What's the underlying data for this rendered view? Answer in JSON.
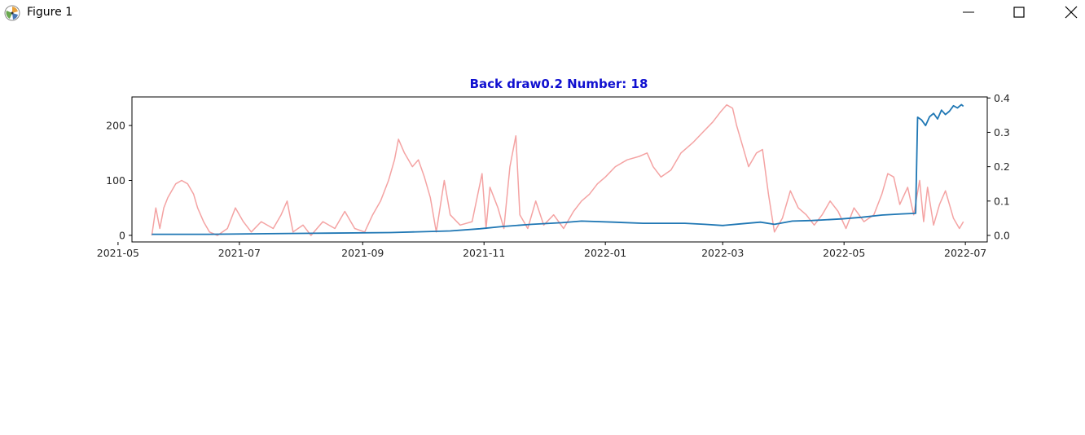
{
  "window": {
    "title": "Figure 1",
    "icons": {
      "app": "matplotlib-figure-icon",
      "minimize": "minimize-icon",
      "maximize": "maximize-icon",
      "close": "close-icon"
    }
  },
  "chart_data": {
    "type": "line",
    "title": "Back draw0.2 Number: 18",
    "title_color": "#1010d0",
    "xlabel": "",
    "ylabel": "",
    "grid": false,
    "legend": "none",
    "x_axis": {
      "type": "date",
      "range": [
        "2021-05-08",
        "2022-07-12"
      ],
      "ticks": [
        "2021-05",
        "2021-07",
        "2021-09",
        "2021-11",
        "2022-01",
        "2022-03",
        "2022-05",
        "2022-07"
      ]
    },
    "y_left": {
      "range": [
        -12,
        252
      ],
      "ticks": [
        0,
        100,
        200
      ],
      "tick_labels": [
        "0",
        "100",
        "200"
      ]
    },
    "y_right": {
      "range": [
        -0.019,
        0.403
      ],
      "ticks": [
        0.0,
        0.1,
        0.2,
        0.3,
        0.4
      ],
      "tick_labels": [
        "0.0",
        "0.1",
        "0.2",
        "0.3",
        "0.4"
      ]
    },
    "series": [
      {
        "axis": "right",
        "color": "#f4a3a3",
        "width": 1.5,
        "points": [
          [
            "2021-05-18",
            0.0
          ],
          [
            "2021-05-20",
            0.08
          ],
          [
            "2021-05-22",
            0.02
          ],
          [
            "2021-05-24",
            0.08
          ],
          [
            "2021-05-26",
            0.11
          ],
          [
            "2021-05-28",
            0.13
          ],
          [
            "2021-05-30",
            0.15
          ],
          [
            "2021-06-02",
            0.16
          ],
          [
            "2021-06-05",
            0.15
          ],
          [
            "2021-06-08",
            0.12
          ],
          [
            "2021-06-10",
            0.08
          ],
          [
            "2021-06-13",
            0.04
          ],
          [
            "2021-06-16",
            0.01
          ],
          [
            "2021-06-20",
            0.0
          ],
          [
            "2021-06-25",
            0.02
          ],
          [
            "2021-06-29",
            0.08
          ],
          [
            "2021-07-03",
            0.04
          ],
          [
            "2021-07-07",
            0.01
          ],
          [
            "2021-07-12",
            0.04
          ],
          [
            "2021-07-18",
            0.02
          ],
          [
            "2021-07-22",
            0.06
          ],
          [
            "2021-07-25",
            0.1
          ],
          [
            "2021-07-28",
            0.01
          ],
          [
            "2021-08-02",
            0.03
          ],
          [
            "2021-08-06",
            0.0
          ],
          [
            "2021-08-12",
            0.04
          ],
          [
            "2021-08-18",
            0.02
          ],
          [
            "2021-08-23",
            0.07
          ],
          [
            "2021-08-28",
            0.02
          ],
          [
            "2021-09-02",
            0.01
          ],
          [
            "2021-09-06",
            0.06
          ],
          [
            "2021-09-10",
            0.1
          ],
          [
            "2021-09-14",
            0.16
          ],
          [
            "2021-09-17",
            0.22
          ],
          [
            "2021-09-19",
            0.28
          ],
          [
            "2021-09-22",
            0.24
          ],
          [
            "2021-09-26",
            0.2
          ],
          [
            "2021-09-29",
            0.22
          ],
          [
            "2021-10-02",
            0.17
          ],
          [
            "2021-10-05",
            0.11
          ],
          [
            "2021-10-08",
            0.01
          ],
          [
            "2021-10-12",
            0.16
          ],
          [
            "2021-10-15",
            0.06
          ],
          [
            "2021-10-20",
            0.03
          ],
          [
            "2021-10-26",
            0.04
          ],
          [
            "2021-10-31",
            0.18
          ],
          [
            "2021-11-02",
            0.02
          ],
          [
            "2021-11-04",
            0.14
          ],
          [
            "2021-11-08",
            0.08
          ],
          [
            "2021-11-11",
            0.02
          ],
          [
            "2021-11-14",
            0.2
          ],
          [
            "2021-11-17",
            0.29
          ],
          [
            "2021-11-19",
            0.06
          ],
          [
            "2021-11-23",
            0.02
          ],
          [
            "2021-11-27",
            0.1
          ],
          [
            "2021-12-01",
            0.03
          ],
          [
            "2021-12-06",
            0.06
          ],
          [
            "2021-12-11",
            0.02
          ],
          [
            "2021-12-16",
            0.07
          ],
          [
            "2021-12-20",
            0.1
          ],
          [
            "2021-12-24",
            0.12
          ],
          [
            "2021-12-28",
            0.15
          ],
          [
            "2022-01-01",
            0.17
          ],
          [
            "2022-01-06",
            0.2
          ],
          [
            "2022-01-12",
            0.22
          ],
          [
            "2022-01-18",
            0.23
          ],
          [
            "2022-01-22",
            0.24
          ],
          [
            "2022-01-25",
            0.2
          ],
          [
            "2022-01-29",
            0.17
          ],
          [
            "2022-02-03",
            0.19
          ],
          [
            "2022-02-08",
            0.24
          ],
          [
            "2022-02-14",
            0.27
          ],
          [
            "2022-02-19",
            0.3
          ],
          [
            "2022-02-24",
            0.33
          ],
          [
            "2022-02-28",
            0.36
          ],
          [
            "2022-03-03",
            0.38
          ],
          [
            "2022-03-06",
            0.37
          ],
          [
            "2022-03-08",
            0.32
          ],
          [
            "2022-03-11",
            0.26
          ],
          [
            "2022-03-14",
            0.2
          ],
          [
            "2022-03-18",
            0.24
          ],
          [
            "2022-03-21",
            0.25
          ],
          [
            "2022-03-24",
            0.12
          ],
          [
            "2022-03-27",
            0.01
          ],
          [
            "2022-03-31",
            0.05
          ],
          [
            "2022-04-04",
            0.13
          ],
          [
            "2022-04-08",
            0.08
          ],
          [
            "2022-04-12",
            0.06
          ],
          [
            "2022-04-16",
            0.03
          ],
          [
            "2022-04-20",
            0.06
          ],
          [
            "2022-04-24",
            0.1
          ],
          [
            "2022-04-28",
            0.07
          ],
          [
            "2022-05-02",
            0.02
          ],
          [
            "2022-05-06",
            0.08
          ],
          [
            "2022-05-11",
            0.04
          ],
          [
            "2022-05-16",
            0.06
          ],
          [
            "2022-05-20",
            0.12
          ],
          [
            "2022-05-23",
            0.18
          ],
          [
            "2022-05-26",
            0.17
          ],
          [
            "2022-05-29",
            0.09
          ],
          [
            "2022-06-02",
            0.14
          ],
          [
            "2022-06-05",
            0.06
          ],
          [
            "2022-06-08",
            0.16
          ],
          [
            "2022-06-10",
            0.04
          ],
          [
            "2022-06-12",
            0.14
          ],
          [
            "2022-06-15",
            0.03
          ],
          [
            "2022-06-18",
            0.09
          ],
          [
            "2022-06-21",
            0.13
          ],
          [
            "2022-06-25",
            0.05
          ],
          [
            "2022-06-28",
            0.02
          ],
          [
            "2022-06-30",
            0.04
          ]
        ]
      },
      {
        "axis": "left",
        "color": "#1f77b4",
        "width": 1.8,
        "points": [
          [
            "2021-05-18",
            2
          ],
          [
            "2021-06-15",
            2
          ],
          [
            "2021-07-15",
            3
          ],
          [
            "2021-08-15",
            4
          ],
          [
            "2021-09-15",
            5
          ],
          [
            "2021-10-15",
            8
          ],
          [
            "2021-10-30",
            12
          ],
          [
            "2021-11-10",
            16
          ],
          [
            "2021-11-25",
            20
          ],
          [
            "2021-12-10",
            23
          ],
          [
            "2021-12-20",
            26
          ],
          [
            "2022-01-05",
            24
          ],
          [
            "2022-01-20",
            22
          ],
          [
            "2022-02-01",
            22
          ],
          [
            "2022-02-10",
            22
          ],
          [
            "2022-02-20",
            20
          ],
          [
            "2022-03-01",
            18
          ],
          [
            "2022-03-10",
            21
          ],
          [
            "2022-03-20",
            24
          ],
          [
            "2022-03-27",
            20
          ],
          [
            "2022-04-05",
            26
          ],
          [
            "2022-04-15",
            27
          ],
          [
            "2022-04-30",
            30
          ],
          [
            "2022-05-10",
            33
          ],
          [
            "2022-05-20",
            37
          ],
          [
            "2022-05-30",
            39
          ],
          [
            "2022-06-06",
            40
          ],
          [
            "2022-06-07",
            215
          ],
          [
            "2022-06-09",
            210
          ],
          [
            "2022-06-11",
            200
          ],
          [
            "2022-06-13",
            216
          ],
          [
            "2022-06-15",
            222
          ],
          [
            "2022-06-17",
            212
          ],
          [
            "2022-06-19",
            228
          ],
          [
            "2022-06-21",
            220
          ],
          [
            "2022-06-23",
            226
          ],
          [
            "2022-06-25",
            236
          ],
          [
            "2022-06-27",
            232
          ],
          [
            "2022-06-29",
            238
          ],
          [
            "2022-06-30",
            235
          ]
        ]
      }
    ]
  }
}
